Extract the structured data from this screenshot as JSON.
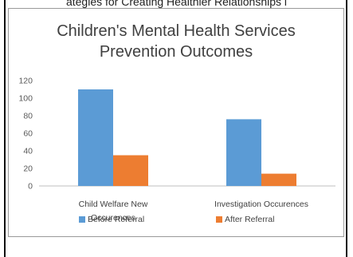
{
  "page": {
    "header_text": "ategies for Creating Healthier Relationships i"
  },
  "chart_data": {
    "type": "bar",
    "title_line1": "Children's Mental Health Services",
    "title_line2": "Prevention Outcomes",
    "categories": [
      "Child Welfare New Occurences",
      "Investigation Occurences"
    ],
    "category_label_lines": [
      [
        "Child Welfare New",
        "Occurences"
      ],
      [
        "Investigation Occurences"
      ]
    ],
    "series": [
      {
        "name": "Before Referral",
        "values": [
          110,
          76
        ],
        "color": "#5b9bd5"
      },
      {
        "name": "After Referral",
        "values": [
          35,
          14
        ],
        "color": "#ed7d31"
      }
    ],
    "ylim": [
      0,
      120
    ],
    "yticks": [
      "0",
      "20",
      "40",
      "60",
      "80",
      "100",
      "120"
    ],
    "grid": false,
    "legend_position": "bottom"
  }
}
